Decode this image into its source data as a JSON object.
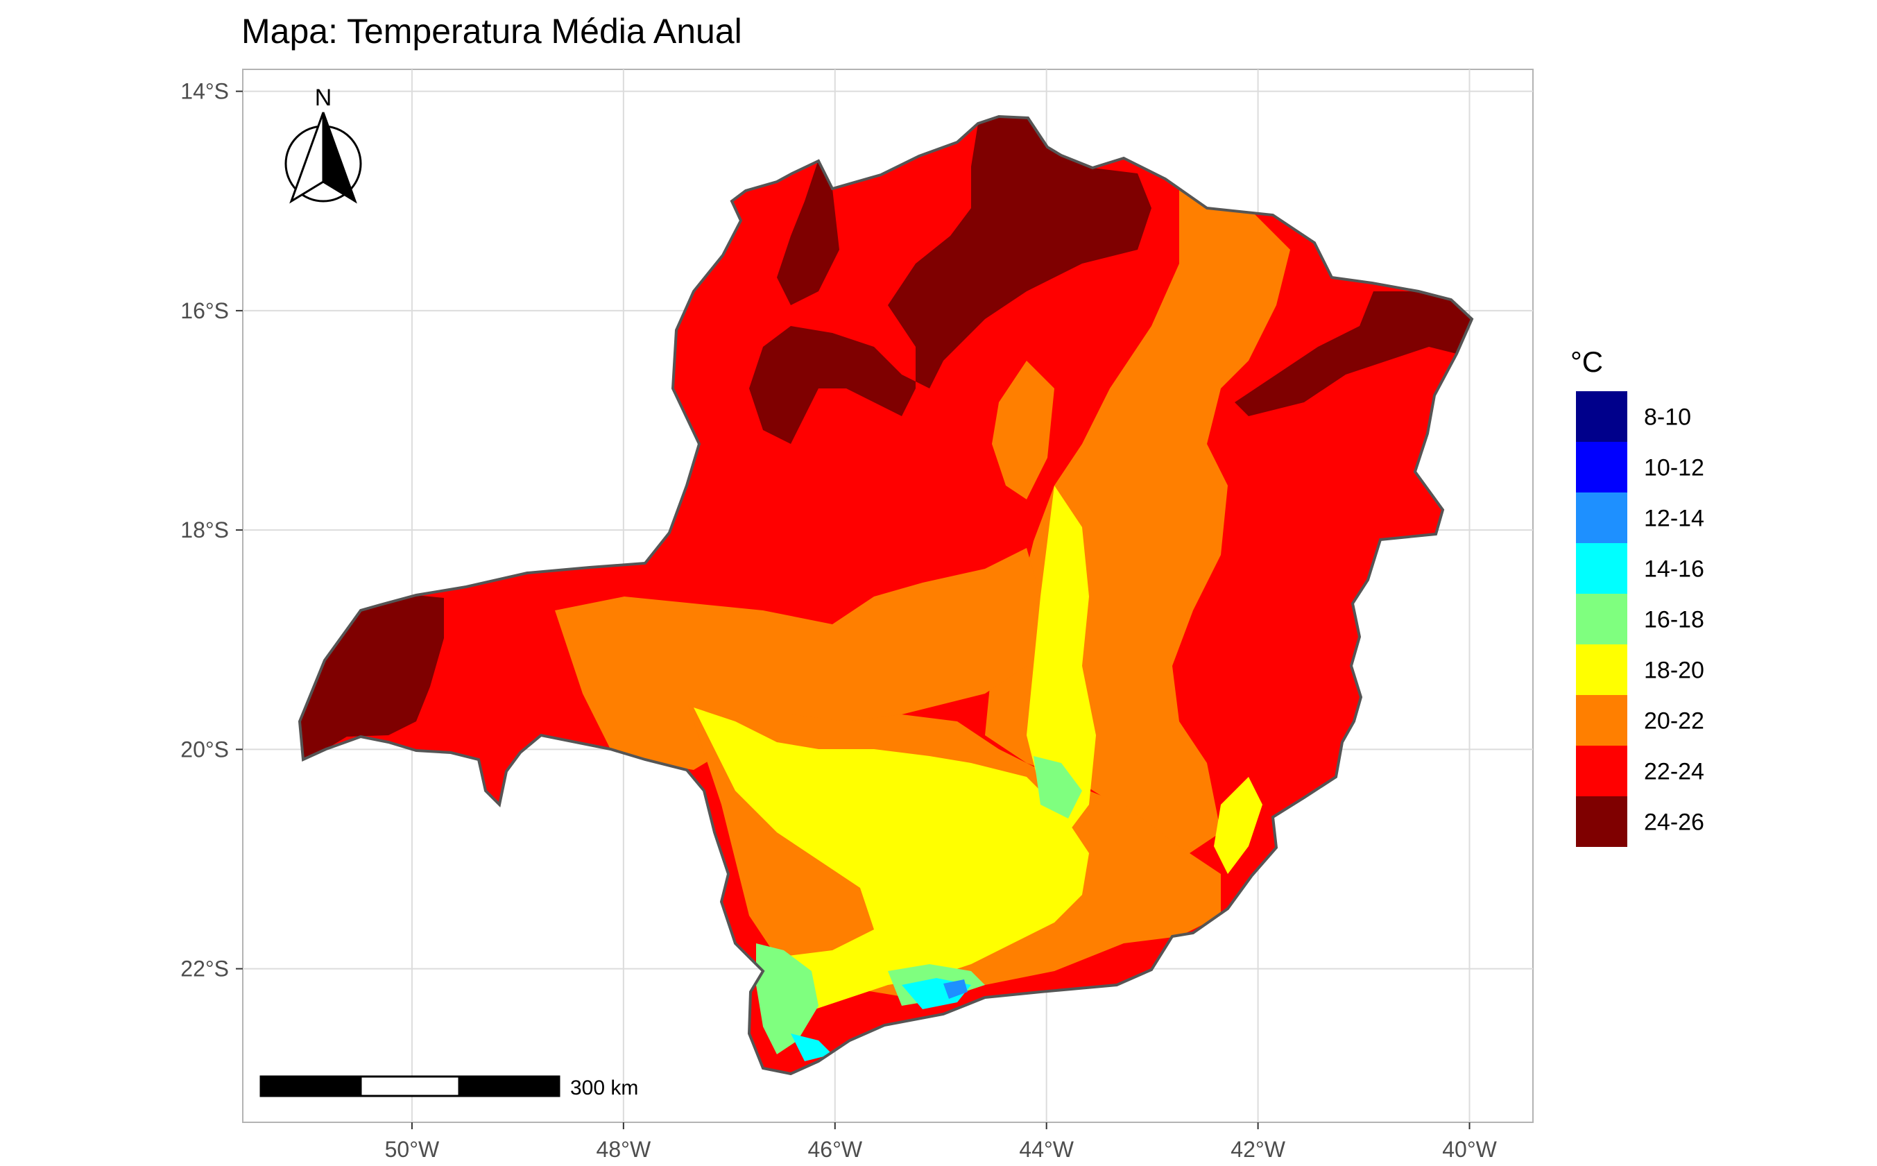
{
  "title": "Mapa: Temperatura Média Anual",
  "x_ticks": [
    {
      "value": -50,
      "label": "50°W"
    },
    {
      "value": -48,
      "label": "48°W"
    },
    {
      "value": -46,
      "label": "46°W"
    },
    {
      "value": -44,
      "label": "44°W"
    },
    {
      "value": -42,
      "label": "42°W"
    },
    {
      "value": -40,
      "label": "40°W"
    }
  ],
  "y_ticks": [
    {
      "value": -14,
      "label": "14°S"
    },
    {
      "value": -16,
      "label": "16°S"
    },
    {
      "value": -18,
      "label": "18°S"
    },
    {
      "value": -20,
      "label": "20°S"
    },
    {
      "value": -22,
      "label": "22°S"
    }
  ],
  "lon_range": [
    -51.6,
    -39.4
  ],
  "lat_range": [
    -23.4,
    -13.8
  ],
  "legend": {
    "title": "°C",
    "items": [
      {
        "label": "8-10",
        "color": "#00008B"
      },
      {
        "label": "10-12",
        "color": "#0000FF"
      },
      {
        "label": "12-14",
        "color": "#1E90FF"
      },
      {
        "label": "14-16",
        "color": "#00FFFF"
      },
      {
        "label": "16-18",
        "color": "#7FFF7F"
      },
      {
        "label": "18-20",
        "color": "#FFFF00"
      },
      {
        "label": "20-22",
        "color": "#FF7F00"
      },
      {
        "label": "22-24",
        "color": "#FF0000"
      },
      {
        "label": "24-26",
        "color": "#7F0000"
      }
    ]
  },
  "north_arrow": {
    "letter": "N"
  },
  "scale_bar": {
    "label": "300 km"
  }
}
